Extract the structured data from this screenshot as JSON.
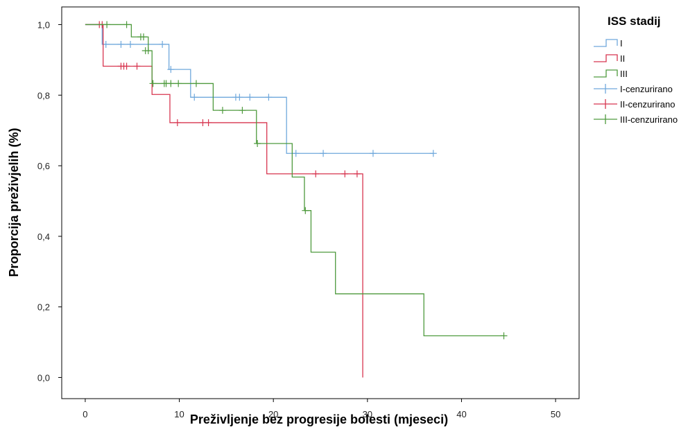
{
  "chart_data": {
    "type": "line",
    "xlabel": "Preživljenje bez progresije bolesti (mjeseci)",
    "ylabel": "Proporcija preživjelih (%)",
    "xlim": [
      -2.5,
      52.5
    ],
    "ylim": [
      -0.06,
      1.05
    ],
    "xticks": [
      0,
      10,
      20,
      30,
      40,
      50
    ],
    "xtick_labels": [
      "0",
      "10",
      "20",
      "30",
      "40",
      "50"
    ],
    "yticks": [
      0,
      0.2,
      0.4,
      0.6,
      0.8,
      1.0
    ],
    "ytick_labels": [
      "0,0",
      "0,2",
      "0,4",
      "0,6",
      "0,8",
      "1,0"
    ],
    "grid": false,
    "legend_title": "ISS stadij",
    "legend_position": "right",
    "colors": {
      "I": "#6fa8dc",
      "II": "#d7354f",
      "III": "#4e9a3d"
    },
    "series": [
      {
        "name": "I",
        "color": "#6fa8dc",
        "steps": [
          [
            0,
            1.0
          ],
          [
            1.8,
            0.944
          ],
          [
            8.9,
            0.873
          ],
          [
            11.2,
            0.794
          ],
          [
            21.4,
            0.635
          ],
          [
            37.0,
            0.635
          ]
        ],
        "censored": [
          [
            2.2,
            0.944
          ],
          [
            3.8,
            0.944
          ],
          [
            4.8,
            0.944
          ],
          [
            8.2,
            0.944
          ],
          [
            9.1,
            0.873
          ],
          [
            11.6,
            0.794
          ],
          [
            16.0,
            0.794
          ],
          [
            16.4,
            0.794
          ],
          [
            17.5,
            0.794
          ],
          [
            19.5,
            0.794
          ],
          [
            22.4,
            0.635
          ],
          [
            25.3,
            0.635
          ],
          [
            30.6,
            0.635
          ],
          [
            37.0,
            0.635
          ]
        ]
      },
      {
        "name": "II",
        "color": "#d7354f",
        "steps": [
          [
            0,
            1.0
          ],
          [
            1.9,
            0.882
          ],
          [
            7.1,
            0.802
          ],
          [
            9.0,
            0.722
          ],
          [
            19.3,
            0.577
          ],
          [
            29.5,
            0.0
          ]
        ],
        "censored": [
          [
            1.5,
            1.0
          ],
          [
            1.8,
            1.0
          ],
          [
            3.8,
            0.882
          ],
          [
            4.1,
            0.882
          ],
          [
            4.4,
            0.882
          ],
          [
            5.5,
            0.882
          ],
          [
            9.8,
            0.722
          ],
          [
            12.5,
            0.722
          ],
          [
            13.1,
            0.722
          ],
          [
            24.5,
            0.577
          ],
          [
            27.6,
            0.577
          ],
          [
            28.9,
            0.577
          ]
        ]
      },
      {
        "name": "III",
        "color": "#4e9a3d",
        "steps": [
          [
            0,
            1.0
          ],
          [
            4.9,
            0.965
          ],
          [
            6.7,
            0.926
          ],
          [
            7.1,
            0.833
          ],
          [
            13.6,
            0.757
          ],
          [
            18.2,
            0.663
          ],
          [
            22.0,
            0.568
          ],
          [
            23.3,
            0.473
          ],
          [
            24.0,
            0.355
          ],
          [
            26.6,
            0.237
          ],
          [
            36.0,
            0.118
          ],
          [
            44.5,
            0.118
          ]
        ],
        "censored": [
          [
            2.3,
            1.0
          ],
          [
            4.4,
            1.0
          ],
          [
            5.9,
            0.965
          ],
          [
            6.2,
            0.965
          ],
          [
            6.4,
            0.926
          ],
          [
            6.7,
            0.926
          ],
          [
            7.2,
            0.833
          ],
          [
            8.4,
            0.833
          ],
          [
            8.6,
            0.833
          ],
          [
            9.1,
            0.833
          ],
          [
            9.9,
            0.833
          ],
          [
            11.8,
            0.833
          ],
          [
            14.6,
            0.757
          ],
          [
            16.7,
            0.757
          ],
          [
            18.3,
            0.663
          ],
          [
            23.4,
            0.473
          ],
          [
            44.5,
            0.118
          ]
        ]
      }
    ],
    "legend_entries": [
      "I",
      "II",
      "III",
      "I-cenzurirano",
      "II-cenzurirano",
      "III-cenzurirano"
    ]
  }
}
